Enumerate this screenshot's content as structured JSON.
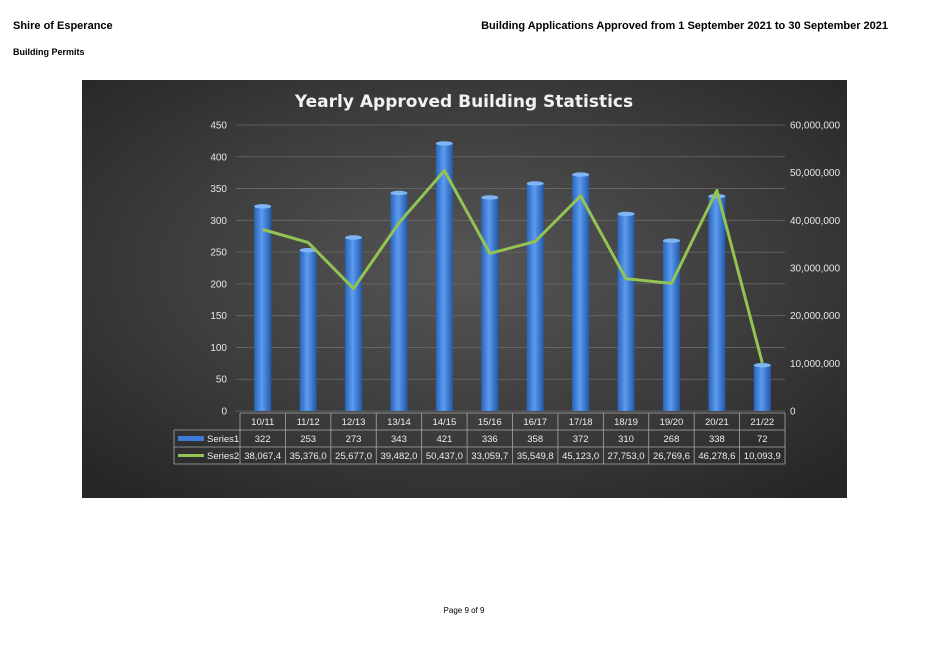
{
  "header": {
    "organisation": "Shire of Esperance",
    "section": "Building Permits",
    "report_title": "Building Applications Approved from 1 September 2021 to 30 September 2021"
  },
  "footer": {
    "page": "Page 9 of 9"
  },
  "chart_data": {
    "type": "bar",
    "title": "Yearly Approved Building Statistics",
    "categories": [
      "10/11",
      "11/12",
      "12/13",
      "13/14",
      "14/15",
      "15/16",
      "16/17",
      "17/18",
      "18/19",
      "19/20",
      "20/21",
      "21/22"
    ],
    "series": [
      {
        "name": "Series1",
        "type": "bar",
        "axis": "left",
        "color": "#3b7dd8",
        "values": [
          322,
          253,
          273,
          343,
          421,
          336,
          358,
          372,
          310,
          268,
          338,
          72
        ],
        "labels": [
          "322",
          "253",
          "273",
          "343",
          "421",
          "336",
          "358",
          "372",
          "310",
          "268",
          "338",
          "72"
        ]
      },
      {
        "name": "Series2",
        "type": "line",
        "axis": "right",
        "color": "#92c353",
        "values": [
          38067400,
          35376000,
          25677000,
          39482000,
          50437000,
          33059700,
          35549800,
          45123000,
          27753000,
          26769600,
          46278600,
          10093900
        ],
        "labels": [
          "38,067,4",
          "35,376,0",
          "25,677,0",
          "39,482,0",
          "50,437,0",
          "33,059,7",
          "35,549,8",
          "45,123,0",
          "27,753,0",
          "26,769,6",
          "46,278,6",
          "10,093,9"
        ]
      }
    ],
    "y_left": {
      "ylim": [
        0,
        450
      ],
      "ticks": [
        "0",
        "50",
        "100",
        "150",
        "200",
        "250",
        "300",
        "350",
        "400",
        "450"
      ]
    },
    "y_right": {
      "ylim": [
        0,
        60000000
      ],
      "ticks": [
        "0",
        "10,000,000",
        "20,000,000",
        "30,000,000",
        "40,000,000",
        "50,000,000",
        "60,000,000"
      ]
    },
    "grid": true,
    "legend": "data-table"
  }
}
